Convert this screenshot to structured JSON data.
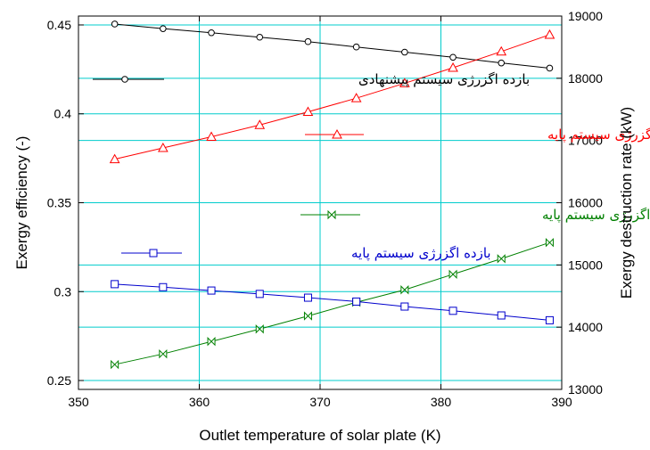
{
  "chart_data": {
    "type": "line",
    "xlabel": "Outlet temperature of solar plate (K)",
    "ylabel_left": "Exergy efficiency (-)",
    "ylabel_right": "Exergy destruction rate (kW)",
    "xlim": [
      350,
      390
    ],
    "ylim_left": [
      0.245,
      0.455
    ],
    "ylim_right": [
      13000,
      19000
    ],
    "x_ticks": [
      350,
      360,
      370,
      380,
      390
    ],
    "y_left_ticks": [
      0.25,
      0.3,
      0.35,
      0.4,
      0.45
    ],
    "y_left_tick_labels": [
      "0.25",
      "0.3",
      "0.35",
      "0.4",
      "0.45"
    ],
    "y_right_ticks": [
      13000,
      14000,
      15000,
      16000,
      17000,
      18000,
      19000
    ],
    "grid": true,
    "grid_color": "#00cccc",
    "x": [
      353,
      357,
      361,
      365,
      369,
      373,
      377,
      381,
      385,
      389
    ],
    "series": [
      {
        "name": "بازده اگزرژی سیستم پیشنهادی",
        "axis": "left",
        "color": "#000000",
        "marker": "circle",
        "values": [
          0.4505,
          0.4479,
          0.4456,
          0.4431,
          0.4406,
          0.4376,
          0.4347,
          0.4318,
          0.4286,
          0.4257
        ]
      },
      {
        "name": "تخریب اگزرژی سیستم پایه",
        "axis": "right",
        "color": "#ff0000",
        "marker": "triangle",
        "values": [
          16700,
          16880,
          17060,
          17250,
          17460,
          17680,
          17920,
          18170,
          18430,
          18700
        ]
      },
      {
        "name": "تخریب اگزرژی سیستم پایه",
        "axis": "right",
        "color": "#008000",
        "marker": "bowtie",
        "values": [
          13400,
          13570,
          13770,
          13970,
          14180,
          14400,
          14600,
          14850,
          15100,
          15360
        ]
      },
      {
        "name": "بازده اگزرژی سیستم پایه",
        "axis": "left",
        "color": "#0000cc",
        "marker": "square",
        "values": [
          0.3042,
          0.3025,
          0.3006,
          0.2987,
          0.2966,
          0.2944,
          0.2916,
          0.2892,
          0.2866,
          0.2839
        ]
      }
    ],
    "legend_labels": [
      "بازده اگزرژی سیستم پیشنهادی",
      "تخریب اگزرژی سیستم پایه",
      "تخریب اگزرژی سیستم پایه",
      "بازده اگزرژی سیستم پایه"
    ]
  }
}
